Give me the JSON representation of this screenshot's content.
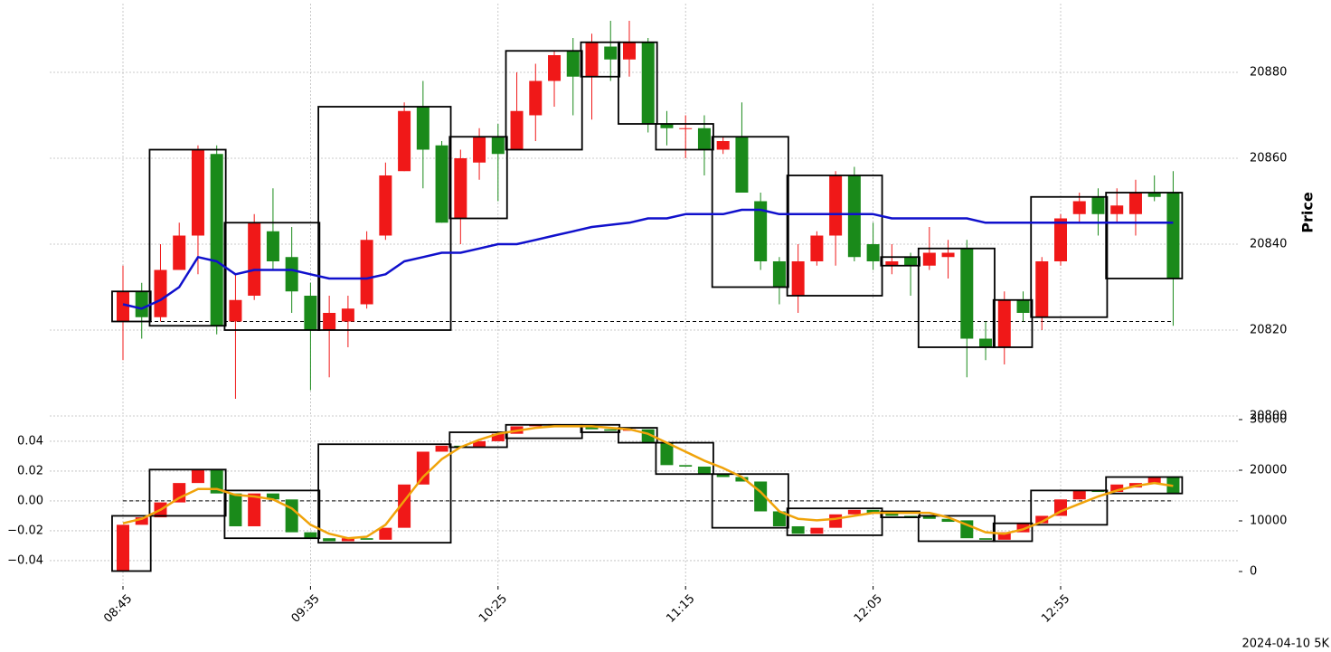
{
  "chart_data": [
    {
      "type": "candlestick",
      "y_label": "Price",
      "categories": [
        "08:45",
        null,
        null,
        null,
        null,
        null,
        null,
        null,
        null,
        null,
        "09:35",
        null,
        null,
        null,
        null,
        null,
        null,
        null,
        null,
        null,
        "10:25",
        null,
        null,
        null,
        null,
        null,
        null,
        null,
        null,
        null,
        "11:15",
        null,
        null,
        null,
        null,
        null,
        null,
        null,
        null,
        null,
        "12:05",
        null,
        null,
        null,
        null,
        null,
        null,
        null,
        null,
        null,
        "12:55",
        null,
        null,
        null,
        null,
        null,
        null
      ],
      "open": [
        20822,
        20829,
        20823,
        20834,
        20842,
        20861,
        20822,
        20828,
        20843,
        20837,
        20828,
        20820,
        20822,
        20826,
        20842,
        20857,
        20872,
        20863,
        20846,
        20859,
        20865,
        20862,
        20870,
        20878,
        20885,
        20879,
        20886,
        20883,
        20887,
        20868,
        20867,
        20867,
        20862,
        20865,
        20850,
        20836,
        20828,
        20836,
        20842,
        20856,
        20840,
        20835,
        20837,
        20835,
        20837,
        20839,
        20818,
        20816,
        20827,
        20823,
        20836,
        20847,
        20851,
        20847,
        20847,
        20852,
        20852
      ],
      "high": [
        20835,
        20831,
        20840,
        20845,
        20863,
        20863,
        20833,
        20847,
        20853,
        20844,
        20831,
        20828,
        20828,
        20843,
        20859,
        20873,
        20878,
        20864,
        20862,
        20867,
        20868,
        20880,
        20882,
        20885,
        20888,
        20889,
        20892,
        20892,
        20888,
        20871,
        20870,
        20870,
        20865,
        20873,
        20852,
        20837,
        20840,
        20843,
        20857,
        20858,
        20845,
        20840,
        20838,
        20844,
        20841,
        20841,
        20822,
        20829,
        20829,
        20837,
        20847,
        20852,
        20853,
        20853,
        20855,
        20856,
        20857
      ],
      "low": [
        20813,
        20818,
        20822,
        20834,
        20833,
        20819,
        20804,
        20827,
        20834,
        20824,
        20806,
        20809,
        20816,
        20825,
        20841,
        20857,
        20853,
        20845,
        20840,
        20855,
        20850,
        20862,
        20864,
        20872,
        20870,
        20869,
        20878,
        20879,
        20866,
        20863,
        20860,
        20856,
        20861,
        20852,
        20834,
        20826,
        20824,
        20835,
        20835,
        20836,
        20834,
        20833,
        20828,
        20834,
        20832,
        20809,
        20813,
        20812,
        20822,
        20820,
        20835,
        20845,
        20842,
        20845,
        20842,
        20850,
        20821
      ],
      "close": [
        20829,
        20823,
        20834,
        20842,
        20862,
        20821,
        20827,
        20845,
        20836,
        20829,
        20820,
        20824,
        20825,
        20841,
        20856,
        20871,
        20862,
        20845,
        20860,
        20865,
        20861,
        20871,
        20878,
        20884,
        20879,
        20887,
        20883,
        20887,
        20868,
        20867,
        20867,
        20862,
        20864,
        20852,
        20836,
        20830,
        20836,
        20842,
        20856,
        20837,
        20836,
        20836,
        20835,
        20838,
        20838,
        20818,
        20816,
        20827,
        20824,
        20836,
        20846,
        20850,
        20847,
        20849,
        20852,
        20851,
        20832
      ],
      "up_color": "#f01818",
      "down_color": "#1a8a1a",
      "line": {
        "color": "#1010cc",
        "values": [
          20826,
          20825,
          20827,
          20830,
          20837,
          20836,
          20833,
          20834,
          20834,
          20834,
          20833,
          20832,
          20832,
          20832,
          20833,
          20836,
          20837,
          20838,
          20838,
          20839,
          20840,
          20840,
          20841,
          20842,
          20843,
          20844,
          20844.5,
          20845,
          20846,
          20846,
          20847,
          20847,
          20847,
          20848,
          20848,
          20847,
          20847,
          20847,
          20847,
          20847,
          20847,
          20846,
          20846,
          20846,
          20846,
          20846,
          20845,
          20845,
          20845,
          20845,
          20845,
          20845,
          20845,
          20845,
          20845,
          20845,
          20845
        ]
      },
      "ref_line": 20822,
      "box_start": [
        0,
        2,
        6,
        11,
        18,
        21,
        25,
        27,
        29,
        32,
        36,
        41,
        43,
        47,
        49,
        53
      ],
      "box_end": [
        1,
        5,
        10,
        17,
        20,
        24,
        26,
        28,
        31,
        35,
        40,
        42,
        46,
        48,
        52,
        56
      ],
      "box_top": [
        20829,
        20862,
        20845,
        20872,
        20865,
        20885,
        20887,
        20887,
        20868,
        20865,
        20856,
        20837,
        20839,
        20827,
        20851,
        20852
      ],
      "box_bottom": [
        20822,
        20821,
        20820,
        20820,
        20846,
        20862,
        20879,
        20868,
        20862,
        20830,
        20828,
        20835,
        20816,
        20816,
        20823,
        20832
      ],
      "ylim": [
        20800,
        20896
      ],
      "yticks": [
        20800,
        20820,
        20840,
        20860,
        20880
      ],
      "grid": true
    },
    {
      "type": "bodies",
      "open": [
        -0.047,
        -0.016,
        -0.011,
        -0.001,
        0.012,
        0.021,
        0.005,
        -0.017,
        0.005,
        0.001,
        -0.021,
        -0.025,
        -0.027,
        -0.025,
        -0.026,
        -0.018,
        0.011,
        0.033,
        0.037,
        0.036,
        0.04,
        0.045,
        0.05,
        0.051,
        0.051,
        0.05,
        0.048,
        0.047,
        0.048,
        0.039,
        0.024,
        0.023,
        0.018,
        0.016,
        0.013,
        -0.007,
        -0.017,
        -0.022,
        -0.018,
        -0.009,
        -0.006,
        -0.008,
        -0.01,
        -0.01,
        -0.012,
        -0.013,
        -0.025,
        -0.026,
        -0.021,
        -0.015,
        -0.01,
        0.001,
        0.007,
        0.006,
        0.009,
        0.012,
        0.016
      ],
      "close": [
        -0.016,
        -0.011,
        -0.001,
        0.012,
        0.021,
        0.005,
        -0.017,
        0.005,
        0.001,
        -0.021,
        -0.025,
        -0.027,
        -0.025,
        -0.026,
        -0.018,
        0.011,
        0.033,
        0.037,
        0.036,
        0.04,
        0.045,
        0.05,
        0.051,
        0.0515,
        0.05,
        0.048,
        0.047,
        0.048,
        0.039,
        0.024,
        0.023,
        0.018,
        0.016,
        0.013,
        -0.007,
        -0.017,
        -0.022,
        -0.018,
        -0.009,
        -0.006,
        -0.008,
        -0.01,
        -0.011,
        -0.012,
        -0.014,
        -0.025,
        -0.026,
        -0.021,
        -0.015,
        -0.01,
        0.001,
        0.007,
        0.006,
        0.011,
        0.012,
        0.016,
        0.005
      ],
      "up_color": "#f01818",
      "down_color": "#1a8a1a",
      "line": {
        "color": "#f0a30a",
        "values": [
          -0.015,
          -0.012,
          -0.006,
          0.002,
          0.008,
          0.008,
          0.004,
          0.003,
          0.001,
          -0.005,
          -0.016,
          -0.022,
          -0.025,
          -0.024,
          -0.016,
          0,
          0.016,
          0.028,
          0.036,
          0.041,
          0.045,
          0.047,
          0.049,
          0.05,
          0.05,
          0.05,
          0.049,
          0.048,
          0.045,
          0.039,
          0.033,
          0.027,
          0.022,
          0.016,
          0.006,
          -0.007,
          -0.012,
          -0.013,
          -0.012,
          -0.01,
          -0.008,
          -0.008,
          -0.008,
          -0.008,
          -0.011,
          -0.016,
          -0.021,
          -0.022,
          -0.019,
          -0.014,
          -0.007,
          -0.002,
          0.003,
          0.007,
          0.01,
          0.012,
          0.01
        ]
      },
      "ref_line": 0,
      "box_start": [
        0,
        2,
        6,
        11,
        18,
        21,
        25,
        27,
        29,
        32,
        36,
        41,
        43,
        47,
        49,
        53
      ],
      "box_end": [
        1,
        5,
        10,
        17,
        20,
        24,
        26,
        28,
        31,
        35,
        40,
        42,
        46,
        48,
        52,
        56
      ],
      "box_top": [
        -0.01,
        0.021,
        0.007,
        0.038,
        0.046,
        0.051,
        0.051,
        0.049,
        0.039,
        0.018,
        -0.005,
        -0.007,
        -0.01,
        -0.015,
        0.007,
        0.016
      ],
      "box_bottom": [
        -0.047,
        -0.01,
        -0.025,
        -0.028,
        0.036,
        0.042,
        0.046,
        0.039,
        0.018,
        -0.018,
        -0.023,
        -0.011,
        -0.027,
        -0.027,
        -0.016,
        0.005
      ],
      "ylim": [
        -0.057,
        0.0545
      ],
      "yticks": [
        {
          "value": -0.04,
          "label": "−0.04"
        },
        {
          "value": -0.02,
          "label": "−0.02"
        },
        {
          "value": 0,
          "label": "0.00"
        },
        0.02,
        0.04
      ],
      "y2lim": [
        -2857,
        30000
      ],
      "y2ticks": [
        0,
        10000,
        20000,
        30000
      ],
      "grid": true
    }
  ],
  "footer": "2024-04-10 5K"
}
